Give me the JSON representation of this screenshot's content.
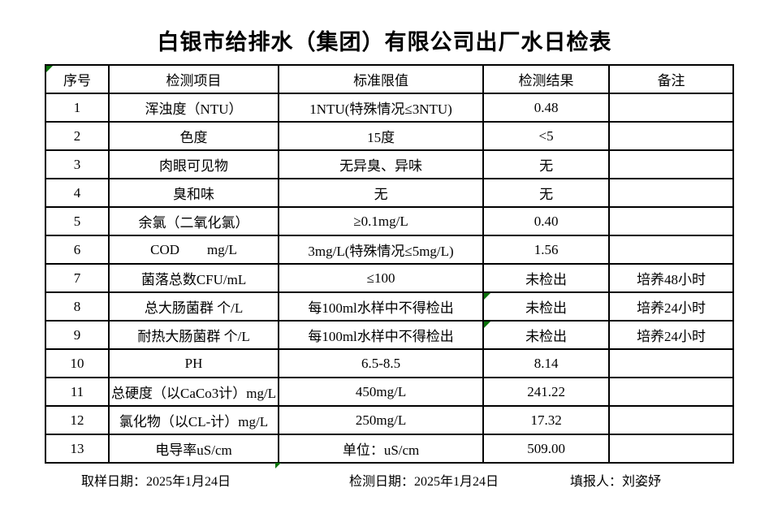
{
  "title": "白银市给排水（集团）有限公司出厂水日检表",
  "colors": {
    "background": "#ffffff",
    "text": "#000000",
    "table_border": "#000000",
    "green_marker": "#0a720a"
  },
  "table": {
    "headers": [
      "序号",
      "检测项目",
      "标准限值",
      "检测结果",
      "备注"
    ],
    "rows": [
      {
        "no": "1",
        "item": "浑浊度（NTU）",
        "standard": "1NTU(特殊情况≤3NTU)",
        "result": "0.48",
        "remark": ""
      },
      {
        "no": "2",
        "item": "色度",
        "standard": "15度",
        "result": "<5",
        "remark": ""
      },
      {
        "no": "3",
        "item": "肉眼可见物",
        "standard": "无异臭、异味",
        "result": "无",
        "remark": ""
      },
      {
        "no": "4",
        "item": "臭和味",
        "standard": "无",
        "result": "无",
        "remark": ""
      },
      {
        "no": "5",
        "item": "余氯（二氧化氯）",
        "standard": "≥0.1mg/L",
        "result": "0.40",
        "remark": ""
      },
      {
        "no": "6",
        "item": "COD        mg/L",
        "standard": "3mg/L(特殊情况≤5mg/L)",
        "result": "1.56",
        "remark": ""
      },
      {
        "no": "7",
        "item": "菌落总数CFU/mL",
        "standard": "≤100",
        "result": "未检出",
        "remark": "培养48小时"
      },
      {
        "no": "8",
        "item": "总大肠菌群 个/L",
        "standard": "每100ml水样中不得检出",
        "result": "未检出",
        "remark": "培养24小时"
      },
      {
        "no": "9",
        "item": "耐热大肠菌群 个/L",
        "standard": "每100ml水样中不得检出",
        "result": "未检出",
        "remark": "培养24小时"
      },
      {
        "no": "10",
        "item": "PH",
        "standard": "6.5-8.5",
        "result": "8.14",
        "remark": ""
      },
      {
        "no": "11",
        "item": "总硬度（以CaCo3计）mg/L",
        "standard": "450mg/L",
        "result": "241.22",
        "remark": ""
      },
      {
        "no": "12",
        "item": "氯化物（以CL-计）mg/L",
        "standard": "250mg/L",
        "result": "17.32",
        "remark": ""
      },
      {
        "no": "13",
        "item": "电导率uS/cm",
        "standard": "单位：uS/cm",
        "result": "509.00",
        "remark": ""
      }
    ]
  },
  "footer": {
    "sampling_date": "取样日期：2025年1月24日",
    "test_date": "检测日期：2025年1月24日",
    "reporter": "填报人：刘姿妤"
  }
}
